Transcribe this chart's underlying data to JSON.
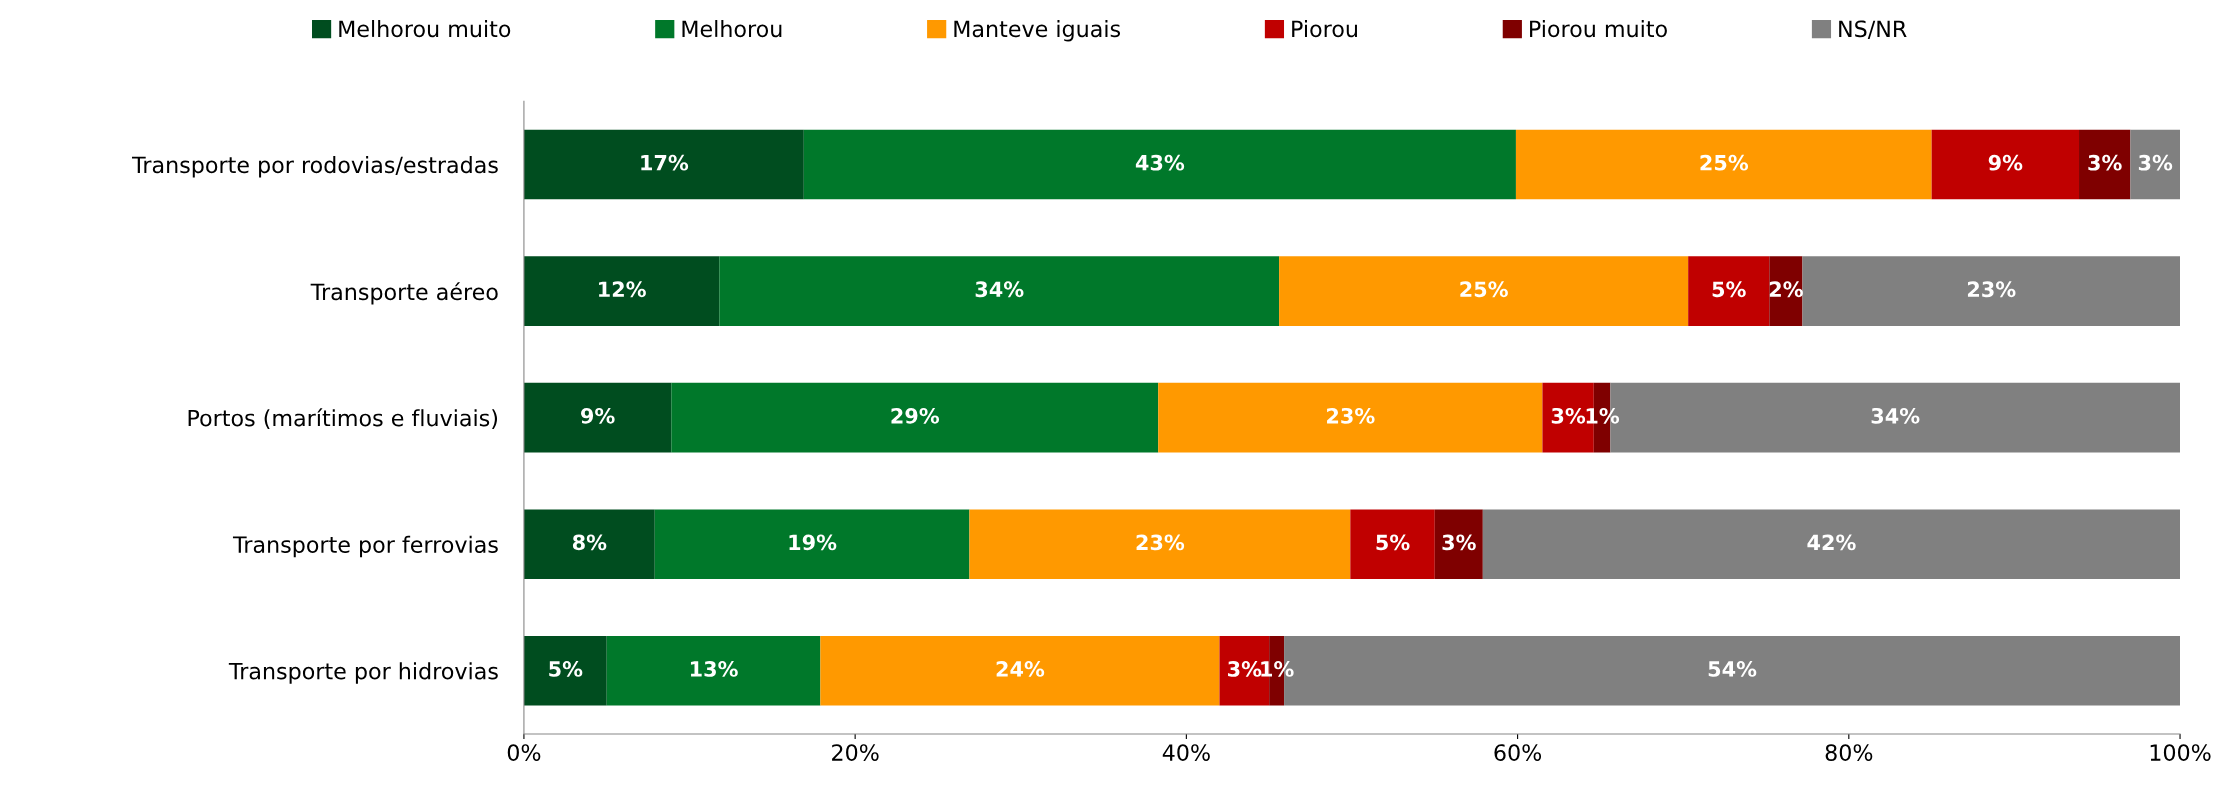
{
  "chart_data": {
    "type": "bar",
    "orientation": "horizontal",
    "stacked": true,
    "categories": [
      "Transporte por rodovias/estradas",
      "Transporte aéreo",
      "Portos (marítimos e fluviais)",
      "Transporte por ferrovias",
      "Transporte por hidrovias"
    ],
    "series": [
      {
        "name": "Melhorou muito",
        "color": "#004d1f",
        "values": [
          16.9,
          11.8,
          8.9,
          7.9,
          5.0
        ],
        "value_labels": [
          "17%",
          "12%",
          "9%",
          "8%",
          "5%"
        ]
      },
      {
        "name": "Melhorou",
        "color": "#00782a",
        "values": [
          43.0,
          33.8,
          29.4,
          19.0,
          12.9
        ],
        "value_labels": [
          "43%",
          "34%",
          "29%",
          "19%",
          "13%"
        ]
      },
      {
        "name": "Manteve iguais",
        "color": "#ff9900",
        "values": [
          25.1,
          24.7,
          23.2,
          23.0,
          24.1
        ],
        "value_labels": [
          "25%",
          "25%",
          "23%",
          "23%",
          "24%"
        ]
      },
      {
        "name": "Piorou",
        "color": "#c00000",
        "values": [
          8.9,
          4.9,
          3.1,
          5.1,
          3.0
        ],
        "value_labels": [
          "9%",
          "5%",
          "3%",
          "5%",
          "3%"
        ]
      },
      {
        "name": "Piorou muito",
        "color": "#7f0000",
        "values": [
          3.1,
          2.0,
          1.0,
          2.9,
          0.9
        ],
        "value_labels": [
          "3%",
          "2%",
          "1%",
          "3%",
          "1%"
        ]
      },
      {
        "name": "NS/NR",
        "color": "#808080",
        "values": [
          3.0,
          22.8,
          34.4,
          42.1,
          54.1
        ],
        "value_labels": [
          "3%",
          "23%",
          "34%",
          "42%",
          "54%"
        ]
      }
    ],
    "xlim": [
      0,
      100
    ],
    "xticks": [
      {
        "value": 0,
        "label": "0%"
      },
      {
        "value": 20,
        "label": "20%"
      },
      {
        "value": 40,
        "label": "40%"
      },
      {
        "value": 60,
        "label": "60%"
      },
      {
        "value": 80,
        "label": "80%"
      },
      {
        "value": 100,
        "label": "100%"
      }
    ],
    "grid": false,
    "legend": "top"
  }
}
